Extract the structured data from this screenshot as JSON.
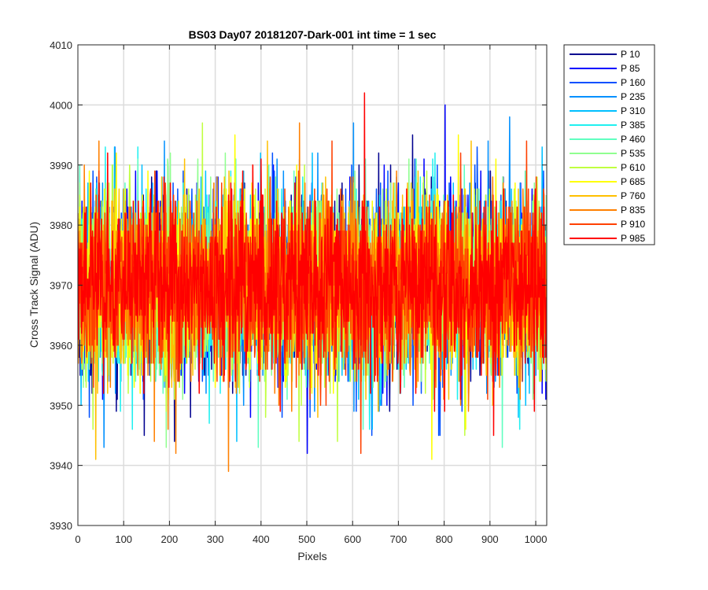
{
  "chart_data": {
    "type": "line",
    "title": "BS03 Day07 20181207-Dark-001 int time = 1 sec",
    "xlabel": "Pixels",
    "ylabel": "Cross Track Signal (ADU)",
    "xlim": [
      0,
      1024
    ],
    "ylim": [
      3930,
      4010
    ],
    "xticks": [
      0,
      100,
      200,
      300,
      400,
      500,
      600,
      700,
      800,
      900,
      1000
    ],
    "yticks": [
      3930,
      3940,
      3950,
      3960,
      3970,
      3980,
      3990,
      4000,
      4010
    ],
    "grid": true,
    "legend_position": "outside-right",
    "series": [
      {
        "name": "P 10",
        "color": "#00008f",
        "mean": 3970,
        "spread": 7.2,
        "max": 3995,
        "min": 3944
      },
      {
        "name": "P 85",
        "color": "#0000ff",
        "mean": 3970,
        "spread": 7.2,
        "max": 4000,
        "min": 3942
      },
      {
        "name": "P 160",
        "color": "#0050ff",
        "mean": 3970,
        "spread": 7.2,
        "max": 3993,
        "min": 3945
      },
      {
        "name": "P 235",
        "color": "#0090ff",
        "mean": 3970,
        "spread": 7.2,
        "max": 3998,
        "min": 3943
      },
      {
        "name": "P 310",
        "color": "#00c0ff",
        "mean": 3970,
        "spread": 7.2,
        "max": 3993,
        "min": 3944
      },
      {
        "name": "P 385",
        "color": "#20f0f0",
        "mean": 3970,
        "spread": 7.2,
        "max": 3993,
        "min": 3946
      },
      {
        "name": "P 460",
        "color": "#60ffc0",
        "mean": 3970,
        "spread": 7.2,
        "max": 3991,
        "min": 3943
      },
      {
        "name": "P 535",
        "color": "#90ff90",
        "mean": 3970,
        "spread": 7.2,
        "max": 3992,
        "min": 3943
      },
      {
        "name": "P 610",
        "color": "#c0ff40",
        "mean": 3970,
        "spread": 7.2,
        "max": 3997,
        "min": 3944
      },
      {
        "name": "P 685",
        "color": "#ffff00",
        "mean": 3970,
        "spread": 7.2,
        "max": 3995,
        "min": 3941
      },
      {
        "name": "P 760",
        "color": "#ffc000",
        "mean": 3970,
        "spread": 7.2,
        "max": 3994,
        "min": 3941
      },
      {
        "name": "P 835",
        "color": "#ff8000",
        "mean": 3970,
        "spread": 7.2,
        "max": 3997,
        "min": 3939
      },
      {
        "name": "P 910",
        "color": "#ff4000",
        "mean": 3970,
        "spread": 7.2,
        "max": 3994,
        "min": 3942
      },
      {
        "name": "P 985",
        "color": "#ff0000",
        "mean": 3970,
        "spread": 7.2,
        "max": 4002,
        "min": 3945
      }
    ]
  }
}
